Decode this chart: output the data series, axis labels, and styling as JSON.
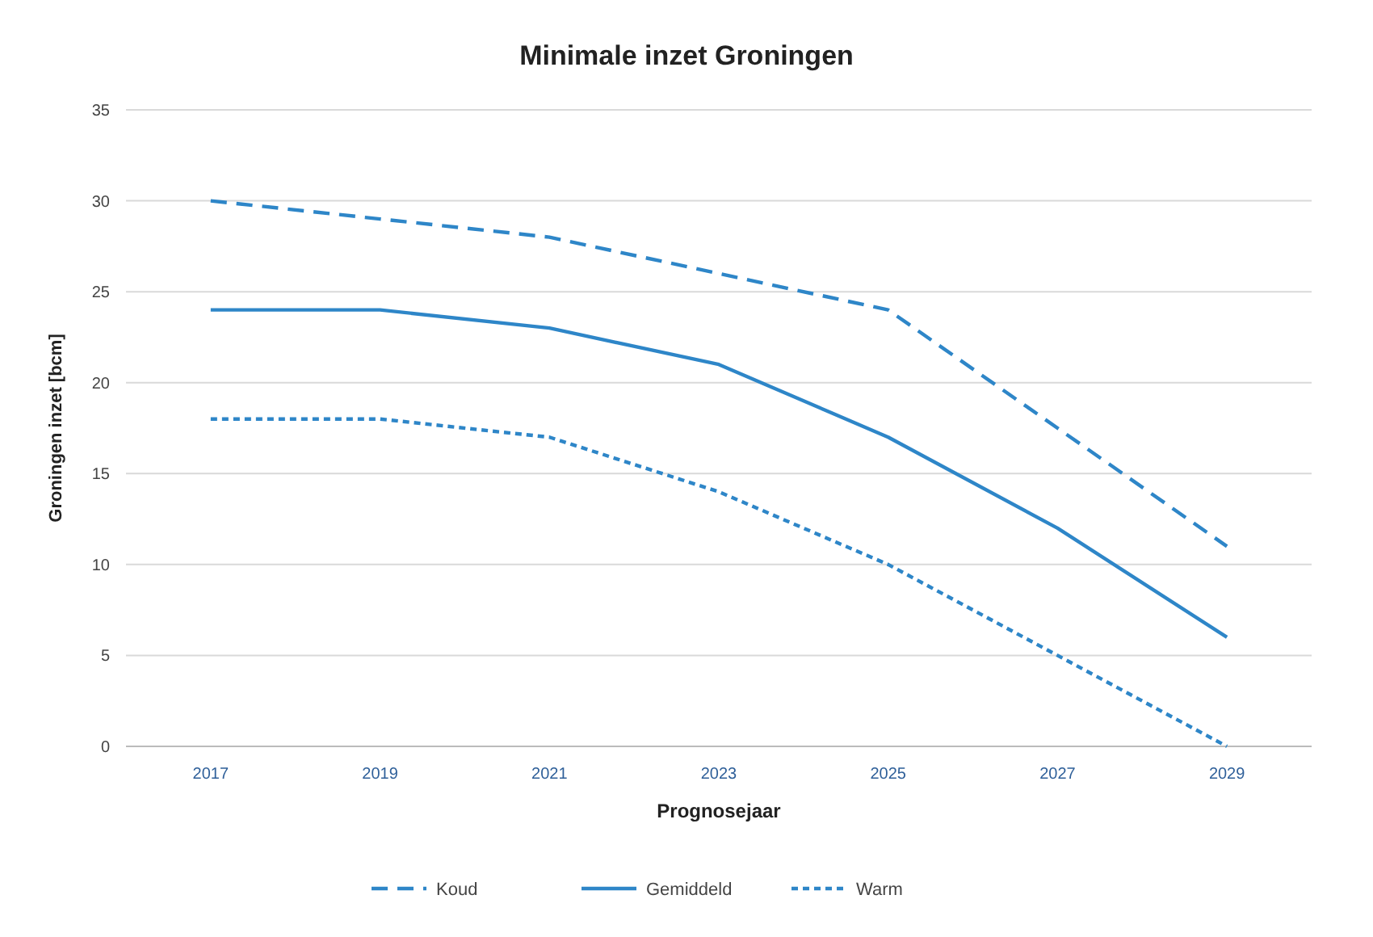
{
  "chart_data": {
    "type": "line",
    "title": "Minimale inzet Groningen",
    "xlabel": "Prognosejaar",
    "ylabel": "Groningen inzet [bcm]",
    "categories": [
      "2017",
      "2019",
      "2021",
      "2023",
      "2025",
      "2027",
      "2029"
    ],
    "series": [
      {
        "name": "Koud",
        "color": "#2e86c8",
        "line_style": "dashed",
        "values": [
          30,
          29,
          28,
          26,
          24,
          17.5,
          11
        ]
      },
      {
        "name": "Gemiddeld",
        "color": "#2e86c8",
        "line_style": "solid",
        "values": [
          24,
          24,
          23,
          21,
          17,
          12,
          6
        ]
      },
      {
        "name": "Warm",
        "color": "#2e86c8",
        "line_style": "dotted",
        "values": [
          18,
          18,
          17,
          14,
          10,
          5,
          0
        ]
      }
    ],
    "ylim": [
      0,
      35
    ],
    "yticks": [
      0,
      5,
      10,
      15,
      20,
      25,
      30,
      35
    ],
    "grid": "y",
    "legend": "bottom",
    "marker": "none"
  }
}
